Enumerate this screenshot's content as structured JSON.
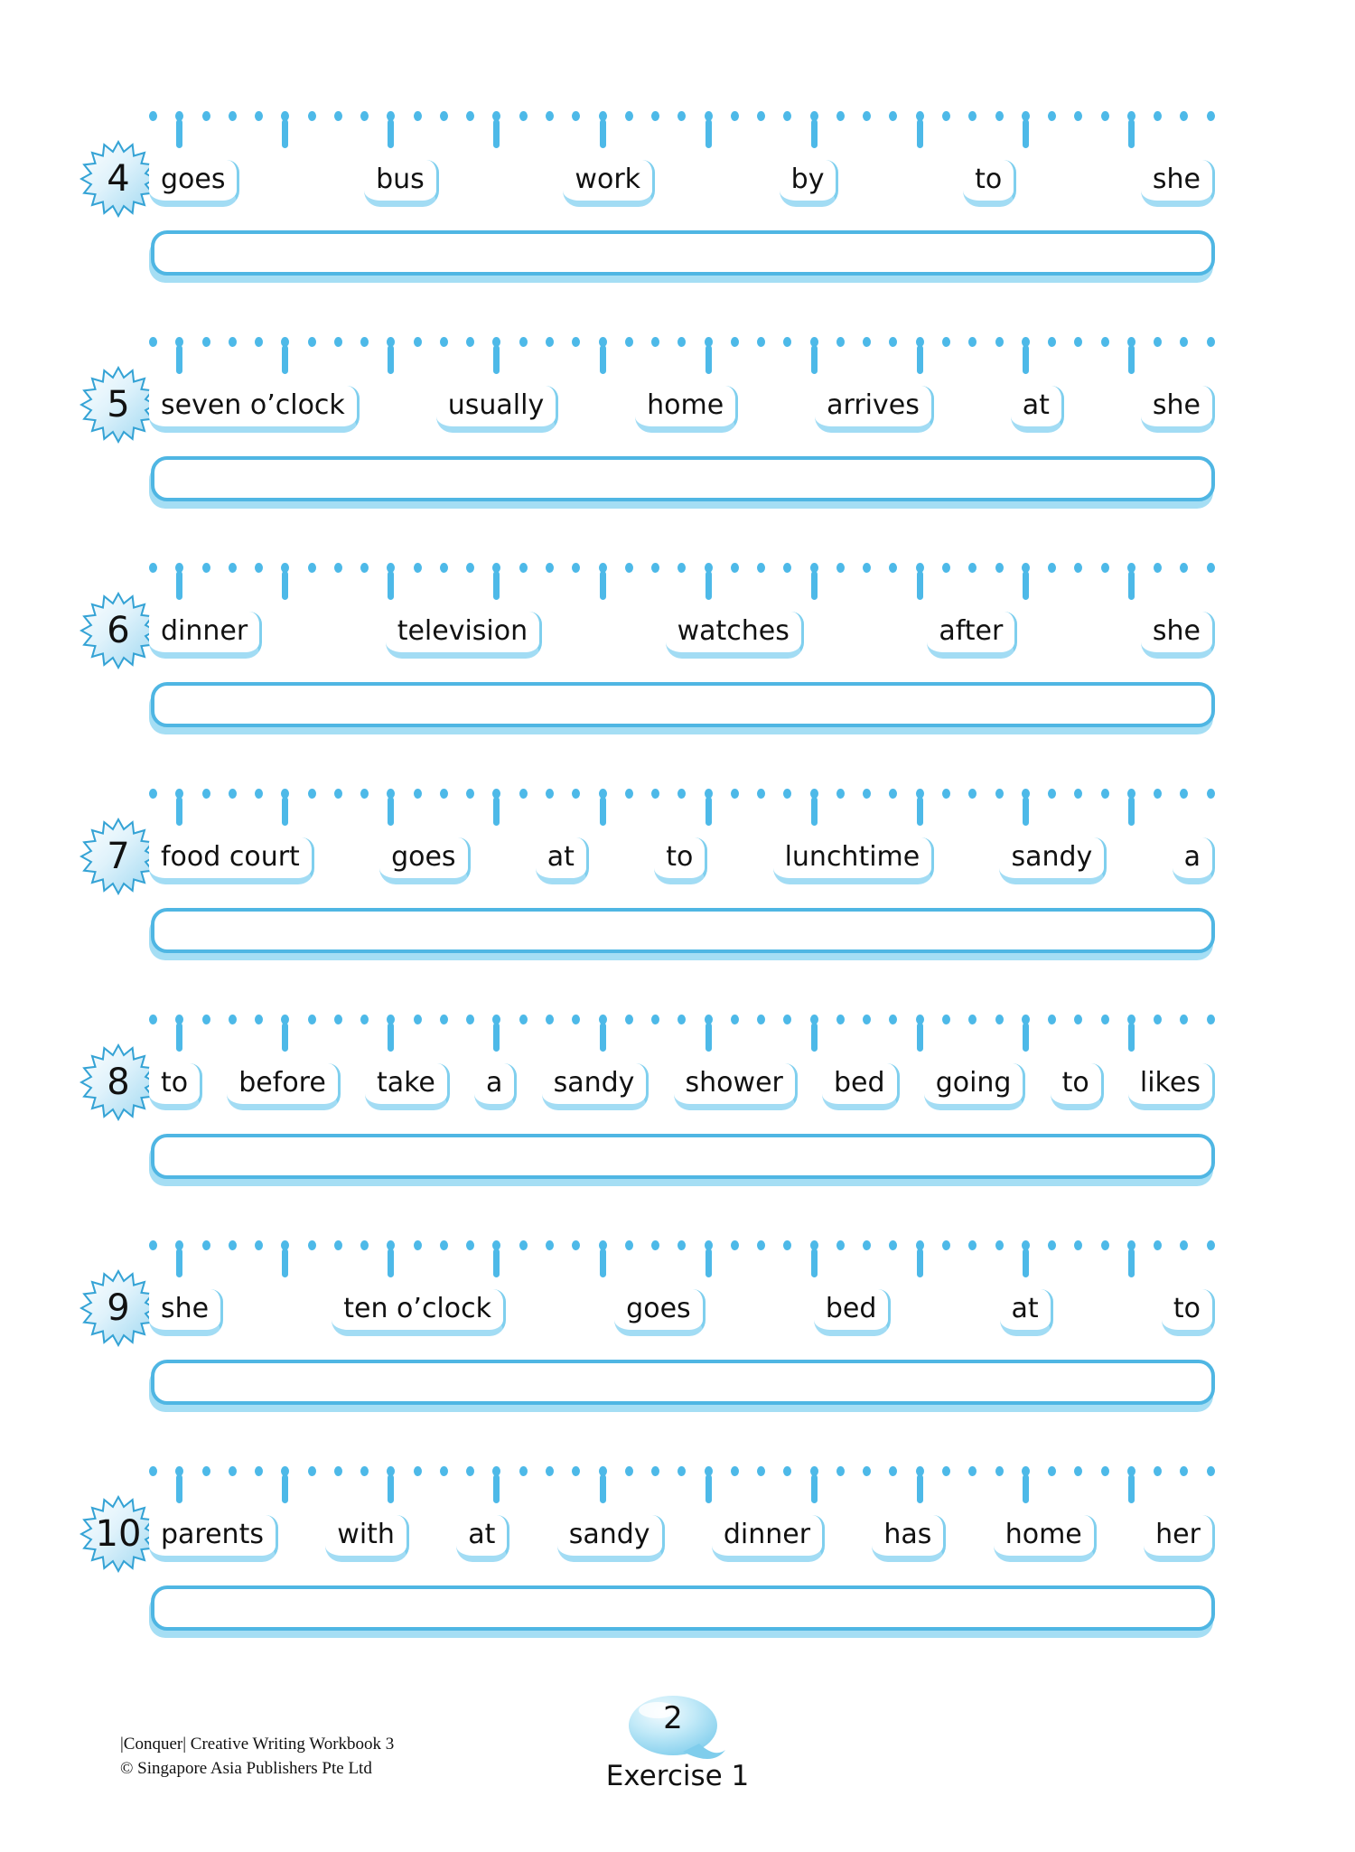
{
  "page": {
    "number": "2",
    "exercise_label": "Exercise 1",
    "footer_line1": "|Conquer| Creative Writing Workbook 3",
    "footer_line2": "© Singapore Asia Publishers Pte Ltd"
  },
  "colors": {
    "dot_blue": "#4db9e8",
    "card_edge_blue": "#7fcfee",
    "card_shadow_blue": "#a2dcf4",
    "box_border_blue": "#4fb6e3",
    "box_shadow_blue": "#a5def4",
    "badge_fill_blue": "#a8dcf2",
    "badge_stroke_blue": "#35a3d5",
    "bubble_blue": "#8fd6f2"
  },
  "exercises": [
    {
      "number": "4",
      "words": [
        "goes",
        "bus",
        "work",
        "by",
        "to",
        "she"
      ]
    },
    {
      "number": "5",
      "words": [
        "seven o’clock",
        "usually",
        "home",
        "arrives",
        "at",
        "she"
      ]
    },
    {
      "number": "6",
      "words": [
        "dinner",
        "television",
        "watches",
        "after",
        "she"
      ]
    },
    {
      "number": "7",
      "words": [
        "food court",
        "goes",
        "at",
        "to",
        "lunchtime",
        "sandy",
        "a"
      ]
    },
    {
      "number": "8",
      "words": [
        "to",
        "before",
        "take",
        "a",
        "sandy",
        "shower",
        "bed",
        "going",
        "to",
        "likes"
      ]
    },
    {
      "number": "9",
      "words": [
        "she",
        "ten o’clock",
        "goes",
        "bed",
        "at",
        "to"
      ]
    },
    {
      "number": "10",
      "words": [
        "parents",
        "with",
        "at",
        "sandy",
        "dinner",
        "has",
        "home",
        "her"
      ]
    }
  ]
}
